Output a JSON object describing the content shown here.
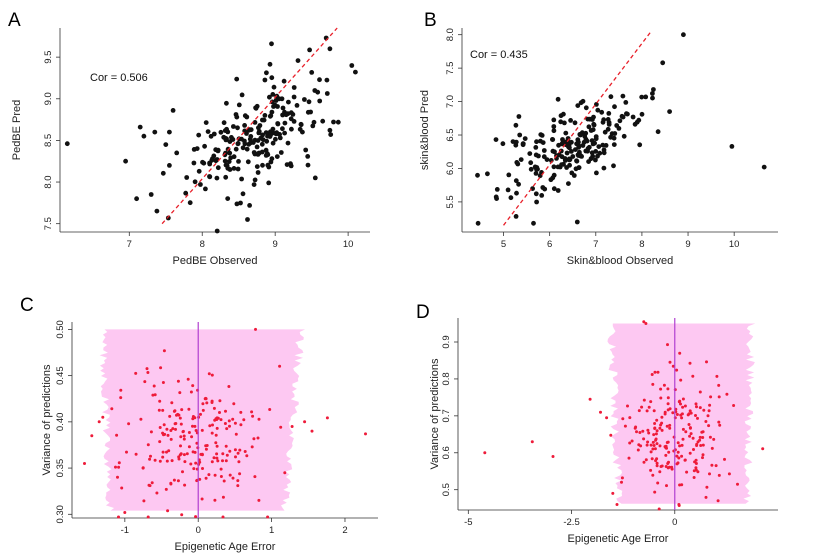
{
  "chart_data": [
    {
      "panel": "A",
      "type": "scatter",
      "xlabel": "PedBE Observed",
      "ylabel": "PedBE Pred",
      "xlim": [
        6.05,
        10.3
      ],
      "ylim": [
        7.4,
        9.85
      ],
      "xticks": [
        7,
        8,
        9,
        10
      ],
      "yticks": [
        7.5,
        8.0,
        8.5,
        9.0,
        9.5
      ],
      "annotation": "Cor = 0.506",
      "fit_line": {
        "x": [
          7.45,
          9.85
        ],
        "y": [
          7.5,
          9.85
        ],
        "color": "#e8202a",
        "style": "dashed"
      },
      "cloud": {
        "n": 225,
        "x_center": 8.75,
        "x_sd": 0.52,
        "y_center": 8.58,
        "y_sd": 0.37,
        "slope": 0.36
      },
      "points": [
        [
          6.15,
          8.46
        ],
        [
          6.95,
          8.25
        ],
        [
          7.1,
          7.8
        ],
        [
          7.15,
          8.66
        ],
        [
          7.2,
          8.55
        ],
        [
          7.3,
          7.85
        ],
        [
          7.5,
          8.45
        ],
        [
          7.55,
          8.6
        ],
        [
          7.55,
          8.2
        ],
        [
          7.6,
          8.86
        ],
        [
          7.65,
          8.35
        ],
        [
          8.62,
          7.55
        ],
        [
          8.65,
          7.72
        ],
        [
          9.55,
          8.05
        ],
        [
          8.95,
          9.66
        ],
        [
          10.05,
          9.4
        ],
        [
          10.1,
          9.32
        ],
        [
          9.7,
          9.73
        ],
        [
          9.75,
          9.6
        ],
        [
          7.35,
          8.6
        ]
      ]
    },
    {
      "panel": "B",
      "type": "scatter",
      "xlabel": "Skin&blood Observed",
      "ylabel": "skin&blood Pred",
      "xlim": [
        4.1,
        10.95
      ],
      "ylim": [
        5.05,
        8.1
      ],
      "xticks": [
        5,
        6,
        7,
        8,
        9,
        10
      ],
      "yticks": [
        5.5,
        6.0,
        6.5,
        7.0,
        7.5,
        8.0
      ],
      "annotation": "Cor = 0.435",
      "fit_line": {
        "x": [
          5.0,
          8.2
        ],
        "y": [
          5.15,
          8.05
        ],
        "color": "#e8202a",
        "style": "dashed"
      },
      "cloud": {
        "n": 210,
        "x_center": 6.45,
        "x_sd": 0.72,
        "y_center": 6.32,
        "y_sd": 0.38,
        "slope": 0.26
      },
      "points": [
        [
          4.45,
          5.18
        ],
        [
          4.65,
          5.92
        ],
        [
          4.85,
          5.55
        ],
        [
          9.95,
          6.33
        ],
        [
          10.65,
          6.02
        ],
        [
          8.9,
          8.0
        ],
        [
          8.45,
          7.58
        ],
        [
          8.25,
          7.18
        ],
        [
          8.6,
          6.85
        ],
        [
          8.35,
          6.55
        ],
        [
          6.6,
          5.2
        ],
        [
          5.65,
          5.18
        ],
        [
          5.1,
          5.68
        ],
        [
          5.35,
          6.5
        ]
      ]
    },
    {
      "panel": "C",
      "type": "scatter",
      "xlabel": "Epigenetic Age Error",
      "ylabel": "Variance of predictions",
      "xlim": [
        -1.72,
        2.45
      ],
      "ylim": [
        0.296,
        0.508
      ],
      "xticks": [
        -1,
        0,
        1,
        2
      ],
      "yticks": [
        0.3,
        0.35,
        0.4,
        0.45,
        0.5
      ],
      "vline": {
        "x": 0,
        "color": "#b13fd0"
      },
      "band": {
        "color": "#fdc8f2",
        "y_range": [
          0.304,
          0.5
        ],
        "x_top": [
          -1.3,
          1.4
        ],
        "x_bottom": [
          -1.2,
          1.18
        ]
      },
      "cloud": {
        "n": 220,
        "x_center": 0.02,
        "x_sd": 0.5,
        "y_center": 0.38,
        "y_sd": 0.035
      },
      "points": [
        [
          -1.55,
          0.355
        ],
        [
          -1.45,
          0.385
        ],
        [
          -1.35,
          0.4
        ],
        [
          -1.3,
          0.405
        ],
        [
          -1.1,
          0.34
        ],
        [
          1.28,
          0.395
        ],
        [
          1.45,
          0.4
        ],
        [
          1.55,
          0.39
        ],
        [
          2.28,
          0.387
        ],
        [
          0.78,
          0.5
        ],
        [
          -1.0,
          0.302
        ],
        [
          1.18,
          0.345
        ]
      ]
    },
    {
      "panel": "D",
      "type": "scatter",
      "xlabel": "Epigenetic Age Error",
      "ylabel": "Variance of predictions",
      "xlim": [
        -5.25,
        2.5
      ],
      "ylim": [
        0.445,
        0.965
      ],
      "xticks": [
        -5,
        -2.5,
        0
      ],
      "xtick_labels": [
        "-5",
        "-2.5",
        "0"
      ],
      "yticks": [
        0.5,
        0.6,
        0.7,
        0.8,
        0.9
      ],
      "vline": {
        "x": 0,
        "color": "#b13fd0"
      },
      "band": {
        "color": "#fdc8f2",
        "y_range": [
          0.462,
          0.95
        ],
        "x_top": [
          -1.55,
          1.85
        ],
        "x_bottom": [
          -1.35,
          1.75
        ]
      },
      "cloud": {
        "n": 210,
        "x_center": 0.0,
        "x_sd": 0.6,
        "y_center": 0.645,
        "y_sd": 0.085
      },
      "points": [
        [
          -4.6,
          0.6
        ],
        [
          -3.45,
          0.63
        ],
        [
          -2.95,
          0.59
        ],
        [
          -2.05,
          0.745
        ],
        [
          -1.8,
          0.71
        ],
        [
          -1.65,
          0.695
        ],
        [
          -0.75,
          0.955
        ],
        [
          -0.7,
          0.95
        ],
        [
          -1.4,
          0.46
        ],
        [
          0.1,
          0.46
        ],
        [
          1.05,
          0.47
        ],
        [
          -1.5,
          0.49
        ]
      ]
    }
  ]
}
